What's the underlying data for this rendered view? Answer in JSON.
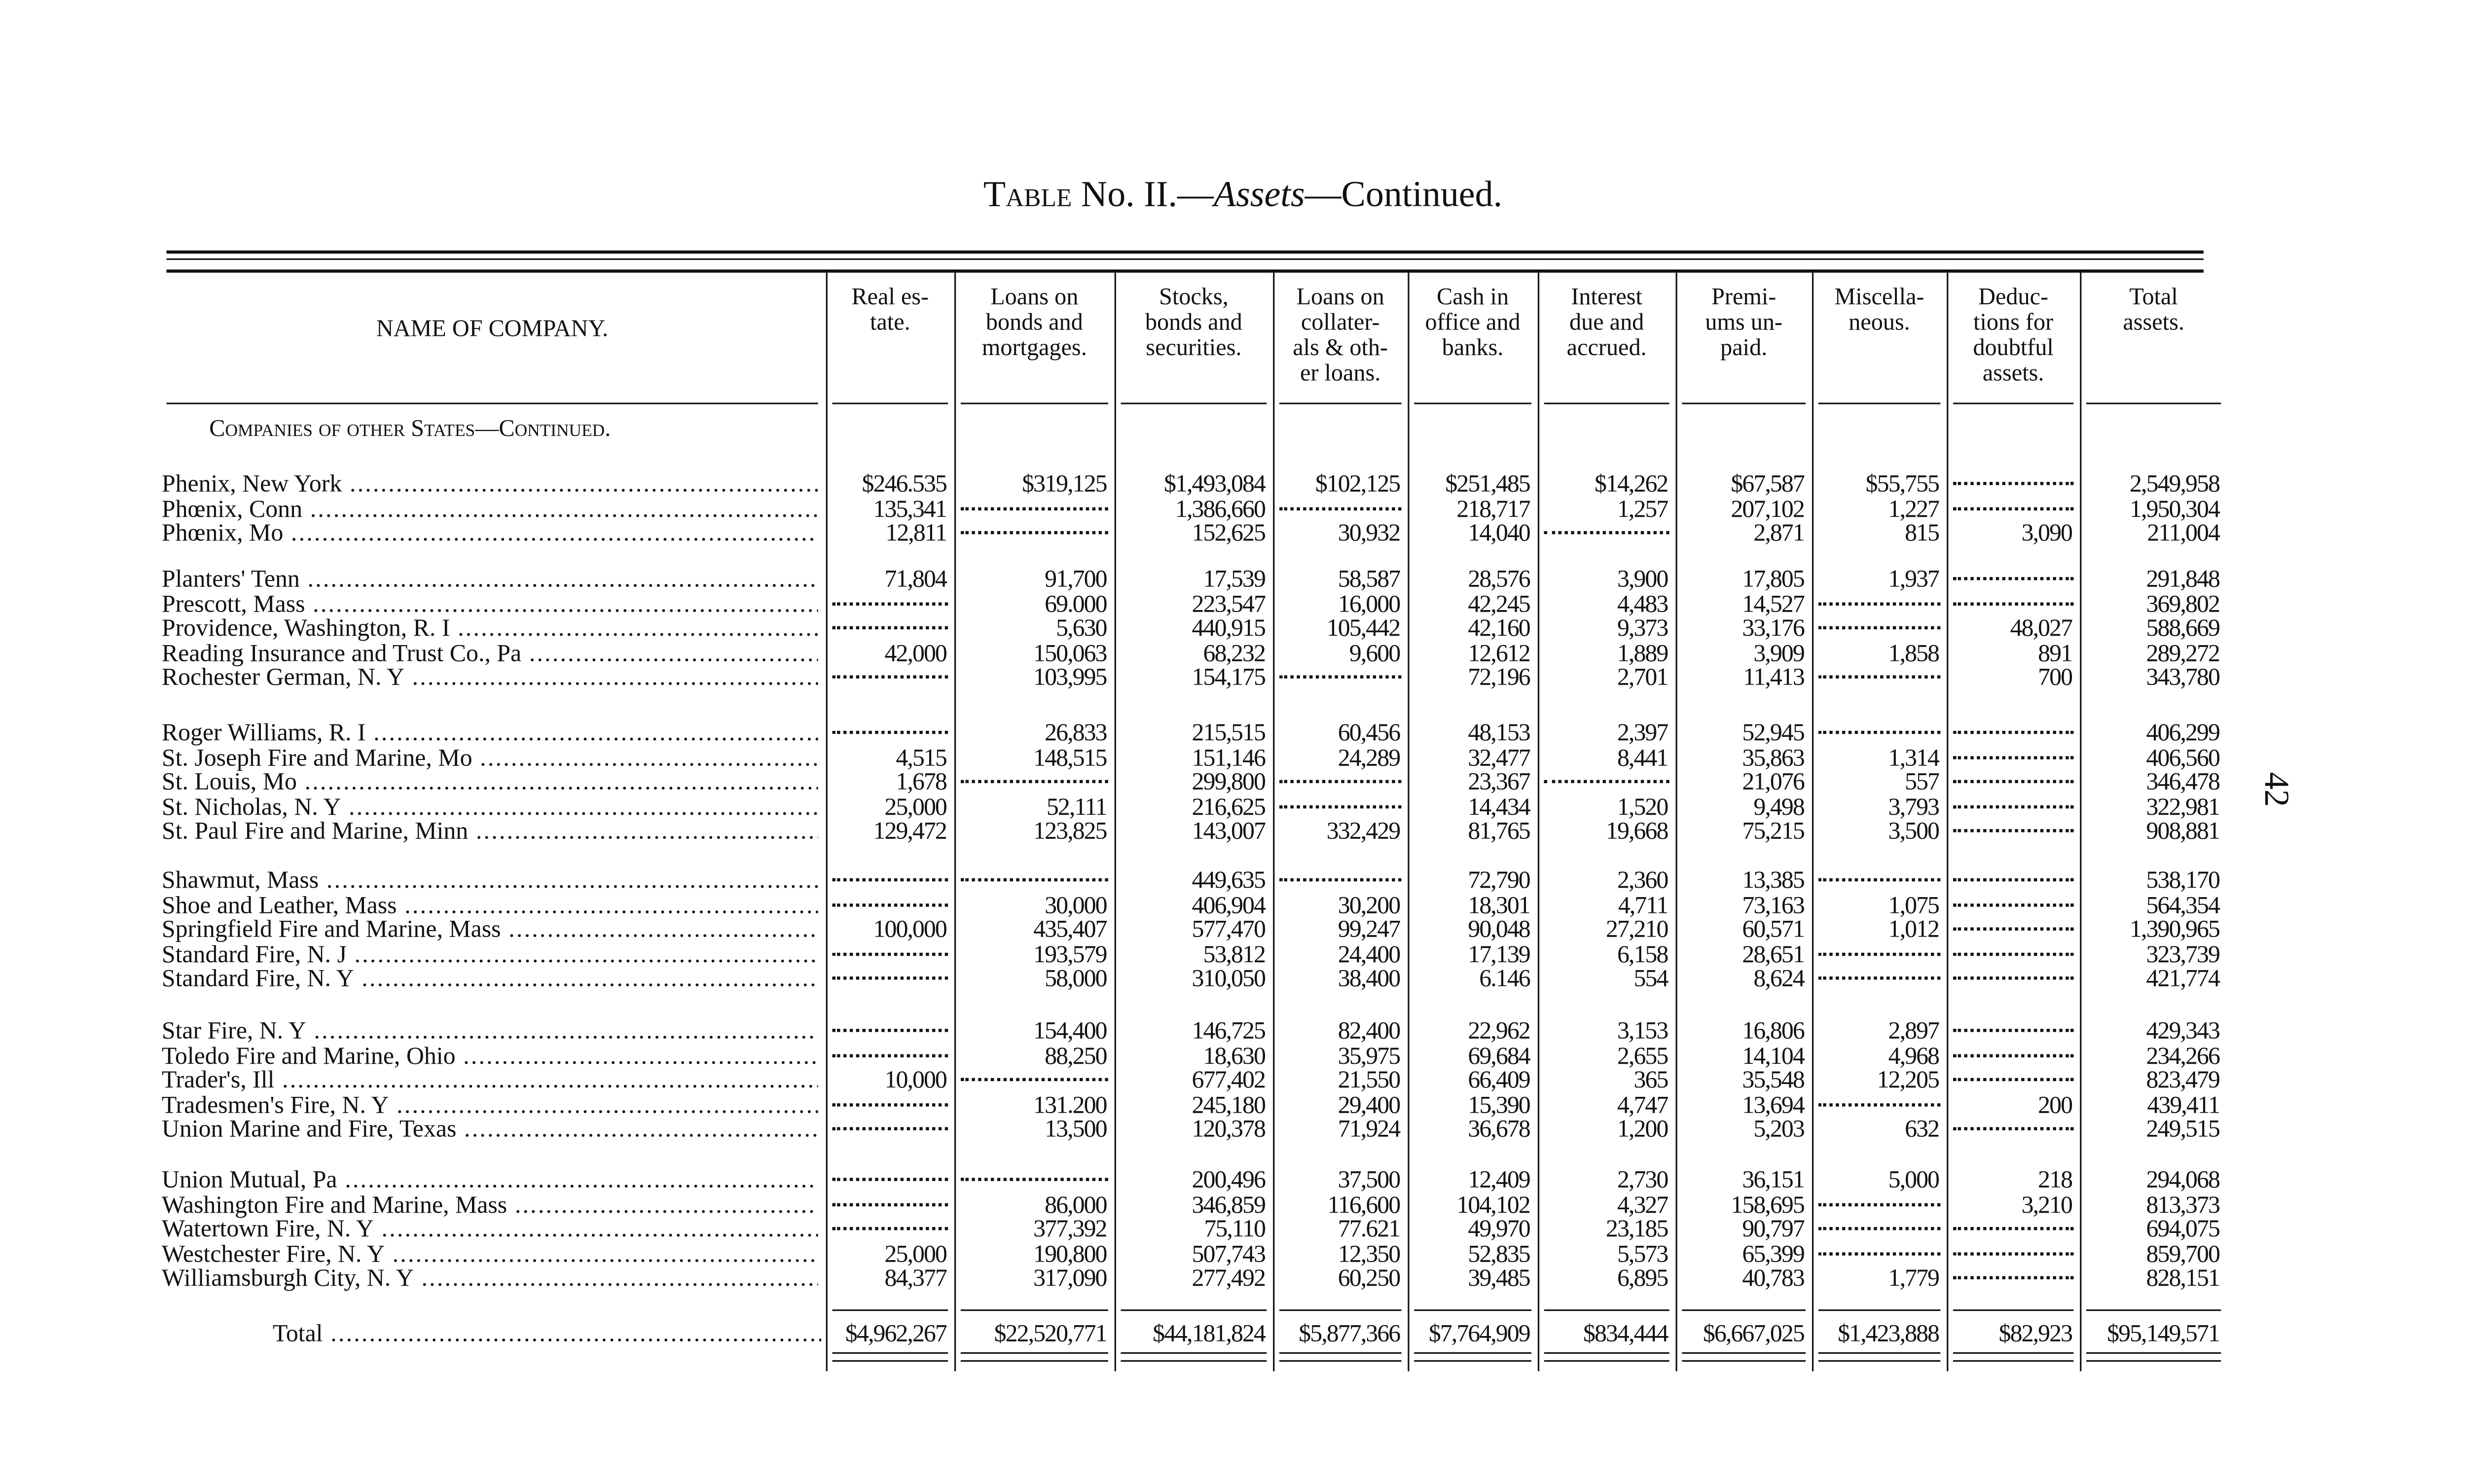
{
  "title": {
    "prefix": "Table",
    "main": "No. II.—",
    "italic": "Assets",
    "suffix": "—Continued."
  },
  "page_number": "42",
  "columns": [
    {
      "label": "NAME OF COMPANY."
    },
    {
      "label": "Real es-\ntate."
    },
    {
      "label": "Loans on\nbonds and\nmortgages."
    },
    {
      "label": "Stocks,\nbonds and\nsecurities."
    },
    {
      "label": "Loans on\ncollater-\nals & oth-\ner loans."
    },
    {
      "label": "Cash in\noffice and\nbanks."
    },
    {
      "label": "Interest\ndue and\naccrued."
    },
    {
      "label": "Premi-\nums un-\npaid."
    },
    {
      "label": "Miscella-\nneous."
    },
    {
      "label": "Deduc-\ntions for\ndoubtful\nassets."
    },
    {
      "label": "Total\nassets."
    }
  ],
  "section_title": "Companies of other States—Continued.",
  "groups": [
    [
      {
        "name": "Phenix, New York",
        "values": [
          "$246.535",
          "$319,125",
          "$1,493,084",
          "$102,125",
          "$251,485",
          "$14,262",
          "$67,587",
          "$55,755",
          null,
          "2,549,958"
        ]
      },
      {
        "name": "Phœnix, Conn",
        "values": [
          "135,341",
          null,
          "1,386,660",
          null,
          "218,717",
          "1,257",
          "207,102",
          "1,227",
          null,
          "1,950,304"
        ]
      },
      {
        "name": "Phœnix, Mo",
        "values": [
          "12,811",
          null,
          "152,625",
          "30,932",
          "14,040",
          null,
          "2,871",
          "815",
          "3,090",
          "211,004"
        ]
      }
    ],
    [
      {
        "name": "Planters' Tenn",
        "values": [
          "71,804",
          "91,700",
          "17,539",
          "58,587",
          "28,576",
          "3,900",
          "17,805",
          "1,937",
          null,
          "291,848"
        ]
      },
      {
        "name": "Prescott, Mass",
        "values": [
          null,
          "69.000",
          "223,547",
          "16,000",
          "42,245",
          "4,483",
          "14,527",
          null,
          null,
          "369,802"
        ]
      },
      {
        "name": "Providence, Washington, R. I",
        "values": [
          null,
          "5,630",
          "440,915",
          "105,442",
          "42,160",
          "9,373",
          "33,176",
          null,
          "48,027",
          "588,669"
        ]
      },
      {
        "name": "Reading Insurance and Trust Co., Pa",
        "values": [
          "42,000",
          "150,063",
          "68,232",
          "9,600",
          "12,612",
          "1,889",
          "3,909",
          "1,858",
          "891",
          "289,272"
        ]
      },
      {
        "name": "Rochester German, N. Y",
        "values": [
          null,
          "103,995",
          "154,175",
          null,
          "72,196",
          "2,701",
          "11,413",
          null,
          "700",
          "343,780"
        ]
      }
    ],
    [
      {
        "name": "Roger Williams, R. I",
        "values": [
          null,
          "26,833",
          "215,515",
          "60,456",
          "48,153",
          "2,397",
          "52,945",
          null,
          null,
          "406,299"
        ]
      },
      {
        "name": "St. Joseph Fire and Marine, Mo",
        "values": [
          "4,515",
          "148,515",
          "151,146",
          "24,289",
          "32,477",
          "8,441",
          "35,863",
          "1,314",
          null,
          "406,560"
        ]
      },
      {
        "name": "St. Louis, Mo",
        "values": [
          "1,678",
          null,
          "299,800",
          null,
          "23,367",
          null,
          "21,076",
          "557",
          null,
          "346,478"
        ]
      },
      {
        "name": "St. Nicholas, N. Y",
        "values": [
          "25,000",
          "52,111",
          "216,625",
          null,
          "14,434",
          "1,520",
          "9,498",
          "3,793",
          null,
          "322,981"
        ]
      },
      {
        "name": "St. Paul Fire and Marine, Minn",
        "values": [
          "129,472",
          "123,825",
          "143,007",
          "332,429",
          "81,765",
          "19,668",
          "75,215",
          "3,500",
          null,
          "908,881"
        ]
      }
    ],
    [
      {
        "name": "Shawmut, Mass",
        "values": [
          null,
          null,
          "449,635",
          null,
          "72,790",
          "2,360",
          "13,385",
          null,
          null,
          "538,170"
        ]
      },
      {
        "name": "Shoe and Leather, Mass",
        "values": [
          null,
          "30,000",
          "406,904",
          "30,200",
          "18,301",
          "4,711",
          "73,163",
          "1,075",
          null,
          "564,354"
        ]
      },
      {
        "name": "Springfield Fire and Marine, Mass",
        "values": [
          "100,000",
          "435,407",
          "577,470",
          "99,247",
          "90,048",
          "27,210",
          "60,571",
          "1,012",
          null,
          "1,390,965"
        ]
      },
      {
        "name": "Standard Fire, N. J",
        "values": [
          null,
          "193,579",
          "53,812",
          "24,400",
          "17,139",
          "6,158",
          "28,651",
          null,
          null,
          "323,739"
        ]
      },
      {
        "name": "Standard Fire, N. Y",
        "values": [
          null,
          "58,000",
          "310,050",
          "38,400",
          "6.146",
          "554",
          "8,624",
          null,
          null,
          "421,774"
        ]
      }
    ],
    [
      {
        "name": "Star Fire, N. Y",
        "values": [
          null,
          "154,400",
          "146,725",
          "82,400",
          "22,962",
          "3,153",
          "16,806",
          "2,897",
          null,
          "429,343"
        ]
      },
      {
        "name": "Toledo Fire and Marine, Ohio",
        "values": [
          null,
          "88,250",
          "18,630",
          "35,975",
          "69,684",
          "2,655",
          "14,104",
          "4,968",
          null,
          "234,266"
        ]
      },
      {
        "name": "Trader's, Ill",
        "values": [
          "10,000",
          null,
          "677,402",
          "21,550",
          "66,409",
          "365",
          "35,548",
          "12,205",
          null,
          "823,479"
        ]
      },
      {
        "name": "Tradesmen's Fire, N. Y",
        "values": [
          null,
          "131.200",
          "245,180",
          "29,400",
          "15,390",
          "4,747",
          "13,694",
          null,
          "200",
          "439,411"
        ]
      },
      {
        "name": "Union Marine and Fire, Texas",
        "values": [
          null,
          "13,500",
          "120,378",
          "71,924",
          "36,678",
          "1,200",
          "5,203",
          "632",
          null,
          "249,515"
        ]
      }
    ],
    [
      {
        "name": "Union Mutual, Pa",
        "values": [
          null,
          null,
          "200,496",
          "37,500",
          "12,409",
          "2,730",
          "36,151",
          "5,000",
          "218",
          "294,068"
        ]
      },
      {
        "name": "Washington Fire and Marine, Mass",
        "values": [
          null,
          "86,000",
          "346,859",
          "116,600",
          "104,102",
          "4,327",
          "158,695",
          null,
          "3,210",
          "813,373"
        ]
      },
      {
        "name": "Watertown Fire, N. Y",
        "values": [
          null,
          "377,392",
          "75,110",
          "77.621",
          "49,970",
          "23,185",
          "90,797",
          null,
          null,
          "694,075"
        ]
      },
      {
        "name": "Westchester Fire, N. Y",
        "values": [
          "25,000",
          "190,800",
          "507,743",
          "12,350",
          "52,835",
          "5,573",
          "65,399",
          null,
          null,
          "859,700"
        ]
      },
      {
        "name": "Williamsburgh City, N. Y",
        "values": [
          "84,377",
          "317,090",
          "277,492",
          "60,250",
          "39,485",
          "6,895",
          "40,783",
          "1,779",
          null,
          "828,151"
        ]
      }
    ]
  ],
  "total": {
    "name": "Total",
    "values": [
      "$4,962,267",
      "$22,520,771",
      "$44,181,824",
      "$5,877,366",
      "$7,764,909",
      "$834,444",
      "$6,667,025",
      "$1,423,888",
      "$82,923",
      "$95,149,571"
    ]
  }
}
